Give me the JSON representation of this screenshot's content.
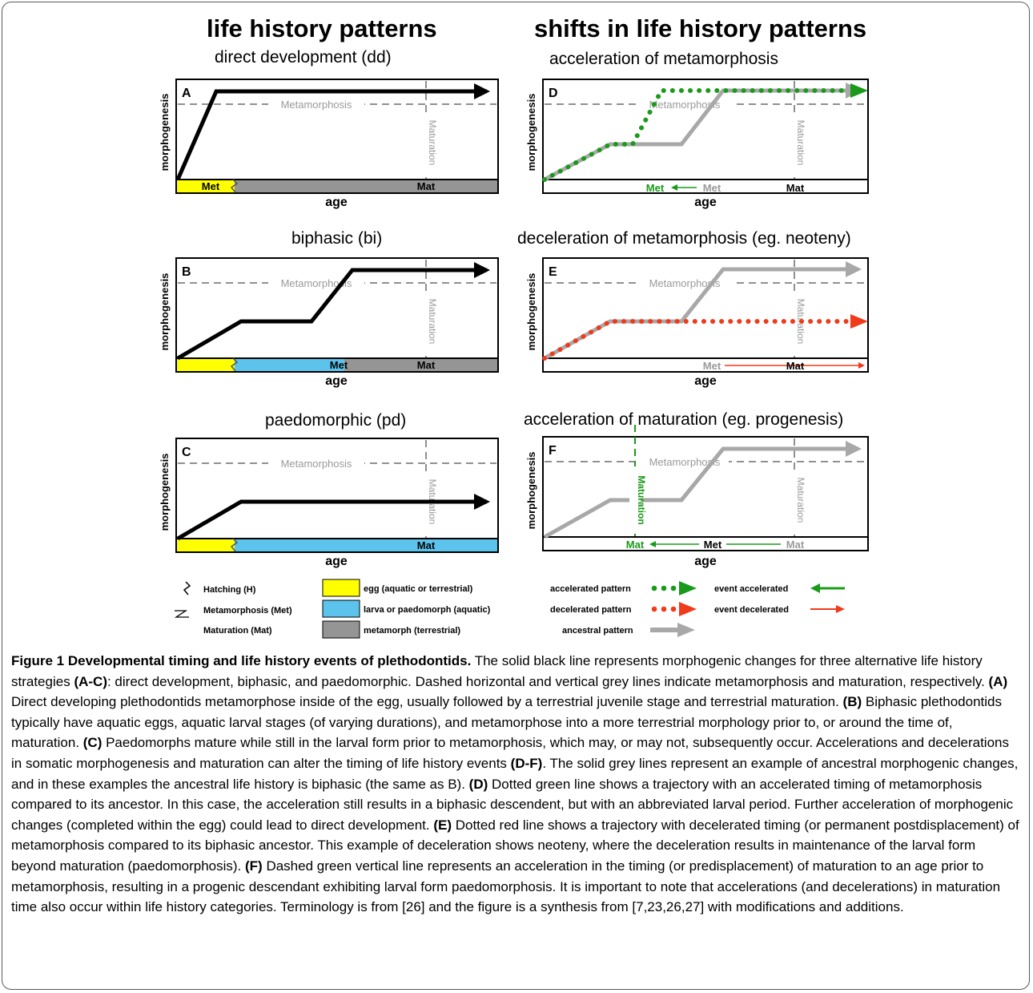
{
  "headings": {
    "left": "life history patterns",
    "right": "shifts in life history patterns"
  },
  "panels": {
    "A": {
      "letter": "A",
      "title": "direct development (dd)",
      "ylabel": "morphogenesis",
      "xlabel": "age",
      "met_line": "Metamorphosis",
      "mat_line": "Maturation",
      "bar_met": "Met",
      "bar_mat": "Mat"
    },
    "B": {
      "letter": "B",
      "title": "biphasic (bi)",
      "ylabel": "morphogenesis",
      "xlabel": "age",
      "met_line": "Metamorphosis",
      "mat_line": "Maturation",
      "bar_met": "Met",
      "bar_mat": "Mat"
    },
    "C": {
      "letter": "C",
      "title": "paedomorphic (pd)",
      "ylabel": "morphogenesis",
      "xlabel": "age",
      "met_line": "Metamorphosis",
      "mat_line": "Maturation",
      "bar_mat": "Mat"
    },
    "D": {
      "letter": "D",
      "title": "acceleration of metamorphosis",
      "ylabel": "morphogenesis",
      "xlabel": "age",
      "met_line": "Metamorphosis",
      "mat_line": "Maturation",
      "bar_met_new": "Met",
      "bar_met_old": "Met",
      "bar_mat": "Mat"
    },
    "E": {
      "letter": "E",
      "title": "deceleration of metamorphosis (eg. neoteny)",
      "ylabel": "morphogenesis",
      "xlabel": "age",
      "met_line": "Metamorphosis",
      "mat_line": "Maturation",
      "bar_met_old": "Met",
      "bar_met_new": "Mat"
    },
    "F": {
      "letter": "F",
      "title": "acceleration of maturation (eg. progenesis)",
      "ylabel": "morphogenesis",
      "xlabel": "age",
      "met_line": "Metamorphosis",
      "mat_line": "Maturation",
      "bar_mat_new": "Mat",
      "bar_met": "Met",
      "bar_mat_old": "Mat"
    }
  },
  "legend": {
    "hatching": "Hatching (H)",
    "metamorphosis": "Metamorphosis (Met)",
    "maturation": "Maturation (Mat)",
    "egg": "egg (aquatic or terrestrial)",
    "larva": "larva or paedomorph (aquatic)",
    "metamorph": "metamorph (terrestrial)",
    "accelerated_pattern": "accelerated pattern",
    "decelerated_pattern": "decelerated pattern",
    "ancestral_pattern": "ancestral pattern",
    "event_accelerated": "event accelerated",
    "event_decelerated": "event decelerated"
  },
  "colors": {
    "egg": "#ffff00",
    "larva": "#5bc3ec",
    "metamorph": "#959595",
    "accelerated": "#1a9a1a",
    "decelerated": "#f03a1a",
    "ancestral": "#a8a8a8"
  },
  "caption": {
    "figure_label": "Figure 1 Developmental timing and life history events of plethodontids.",
    "s1": " The solid black line represents morphogenic changes for three alternative life history strategies ",
    "s1_ref": "(A-C)",
    "s2": ": direct development, biphasic, and paedomorphic. Dashed horizontal and vertical grey lines indicate metamorphosis and maturation, respectively. ",
    "a_ref": "(A)",
    "a_text": " Direct developing plethodontids metamorphose inside of the egg, usually followed by a terrestrial juvenile stage and terrestrial maturation. ",
    "b_ref": "(B)",
    "b_text": " Biphasic plethodontids typically have aquatic eggs, aquatic larval stages (of varying durations), and metamorphose into a more terrestrial morphology prior to, or around the time of, maturation. ",
    "c_ref": "(C)",
    "c_text": " Paedomorphs mature while still in the larval form prior to metamorphosis, which may, or may not, subsequently occur. Accelerations and decelerations in somatic morphogenesis and maturation can alter the timing of life history events ",
    "df_ref": "(D-F)",
    "df_text": ". The solid grey lines represent an example of ancestral morphogenic changes, and in these examples the ancestral life history is biphasic (the same as B). ",
    "d_ref": "(D)",
    "d_text": " Dotted green line shows a trajectory with an accelerated timing of metamorphosis compared to its ancestor. In this case, the acceleration still results in a biphasic descendent, but with an abbreviated larval period. Further acceleration of morphogenic changes (completed within the egg) could lead to direct development. ",
    "e_ref": "(E)",
    "e_text": " Dotted red line shows a trajectory with decelerated timing (or permanent postdisplacement) of metamorphosis compared to its biphasic ancestor. This example of deceleration shows neoteny, where the deceleration results in maintenance of the larval form beyond maturation (paedomorphosis). ",
    "f_ref": "(F)",
    "f_text": " Dashed green vertical line represents an acceleration in the timing (or predisplacement) of maturation to an age prior to metamorphosis, resulting in a progenic descendant exhibiting larval form paedomorphosis. It is important to note that accelerations (and decelerations) in maturation time also occur within life history categories. Terminology is from [26] and the figure is a synthesis from [7,23,26,27] with modifications and additions."
  }
}
